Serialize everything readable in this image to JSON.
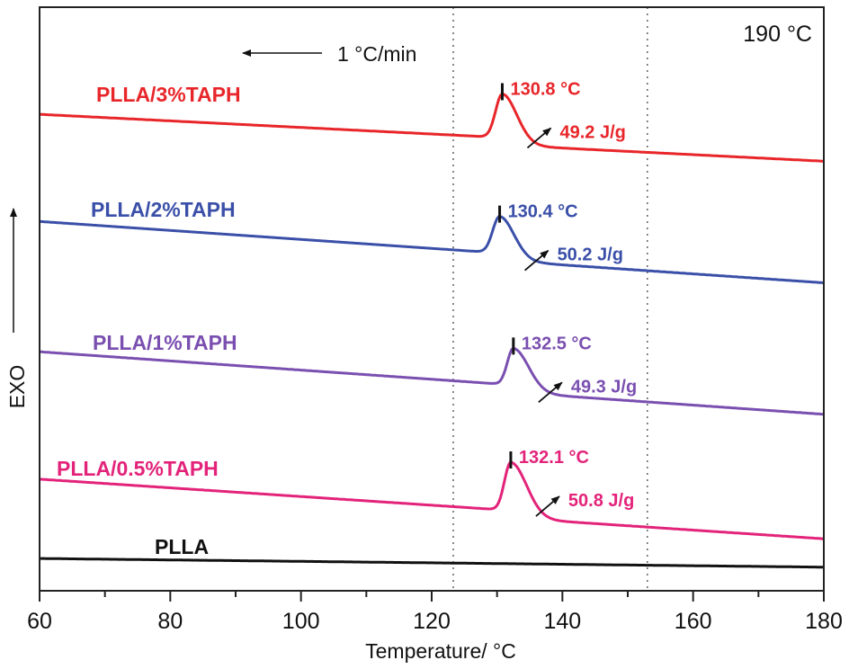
{
  "chart_data": {
    "type": "line",
    "title": "",
    "xlabel": "Temperature/ °C",
    "ylabel": "EXO",
    "xlim": [
      60,
      180
    ],
    "ylim": [
      0,
      100
    ],
    "x_ticks": [
      60,
      80,
      100,
      120,
      140,
      160,
      180
    ],
    "x_tick_labels": [
      "60",
      "80",
      "100",
      "120",
      "140",
      "160",
      "180"
    ],
    "x_minor_ticks": [
      70,
      90,
      110,
      130,
      150,
      170
    ],
    "y_ticks": [],
    "grid": false,
    "reference_lines_x": [
      123.3,
      153.0
    ],
    "annotations": {
      "rate_label": "1 °C/min",
      "rate_arrow_direction": "left",
      "temperature_label": "190 °C",
      "exo_arrow_direction": "up"
    },
    "series": [
      {
        "name": "PLLA/3%TAPH",
        "color": "#e8262a",
        "baseline_start": [
          60,
          81.5
        ],
        "baseline_end": [
          180,
          74.7
        ],
        "peak_T": 130.8,
        "peak_label": "130.8 °C",
        "enthalpy_label": "49.2 J/g",
        "peak_height": 7.6,
        "onset_T": 127.5,
        "end_T": 138
      },
      {
        "name": "PLLA/2%TAPH",
        "color": "#3a4fa8",
        "baseline_start": [
          60,
          63.0
        ],
        "baseline_end": [
          180,
          53.7
        ],
        "peak_T": 130.4,
        "peak_label": "130.4 °C",
        "enthalpy_label": "50.2 J/g",
        "peak_height": 6.4,
        "onset_T": 127.0,
        "end_T": 137.5
      },
      {
        "name": "PLLA/1%TAPH",
        "color": "#7a4fb0",
        "baseline_start": [
          60,
          40.5
        ],
        "baseline_end": [
          180,
          31.0
        ],
        "peak_T": 132.5,
        "peak_label": "132.5 °C",
        "enthalpy_label": "49.3 J/g",
        "peak_height": 6.4,
        "onset_T": 129.5,
        "end_T": 140
      },
      {
        "name": "PLLA/0.5%TAPH",
        "color": "#e3237a",
        "baseline_start": [
          60,
          18.5
        ],
        "baseline_end": [
          180,
          9.5
        ],
        "peak_T": 132.1,
        "peak_label": "132.1 °C",
        "enthalpy_label": "50.8 J/g",
        "peak_height": 8.4,
        "onset_T": 129.0,
        "end_T": 140
      },
      {
        "name": "PLLA",
        "color": "#111111",
        "baseline_start": [
          60,
          4.8
        ],
        "baseline_end": [
          180,
          3.3
        ],
        "peak_T": null,
        "peak_label": "",
        "enthalpy_label": "",
        "peak_height": 0
      }
    ]
  }
}
